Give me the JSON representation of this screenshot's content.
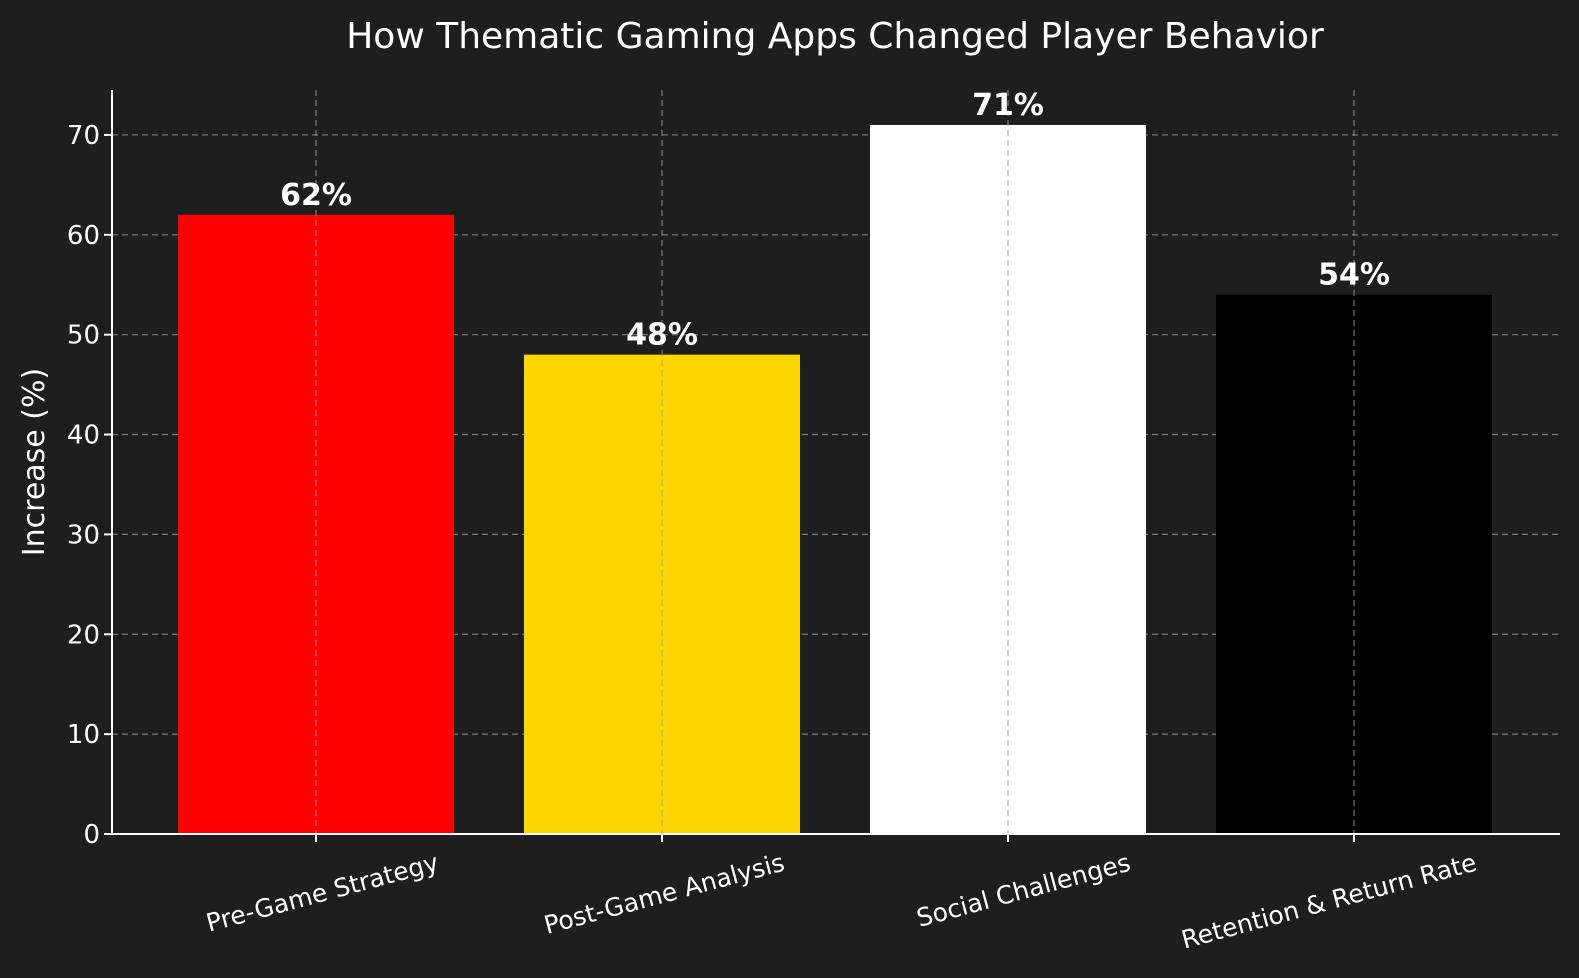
{
  "chart_data": {
    "type": "bar",
    "title": "How Thematic Gaming Apps Changed Player Behavior",
    "xlabel": "",
    "ylabel": "Increase (%)",
    "categories": [
      "Pre-Game Strategy",
      "Post-Game Analysis",
      "Social Challenges",
      "Retention & Return Rate"
    ],
    "values": [
      62,
      48,
      71,
      54
    ],
    "data_labels": [
      "62%",
      "48%",
      "71%",
      "54%"
    ],
    "colors": [
      "#ff0000",
      "#ffd700",
      "#ffffff",
      "#000000"
    ],
    "ylim": [
      0,
      74.5
    ],
    "yticks": [
      0,
      10,
      20,
      30,
      40,
      50,
      60,
      70
    ],
    "grid": true,
    "background": "#1e1e1e"
  }
}
